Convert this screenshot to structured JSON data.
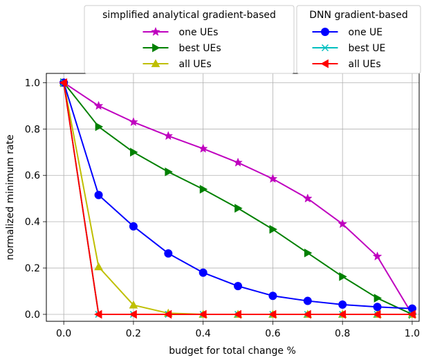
{
  "chart_data": {
    "type": "line",
    "xlabel": "budget for total change %",
    "ylabel": "normalized minimum rate",
    "xlim": [
      -0.05,
      1.02
    ],
    "ylim": [
      -0.03,
      1.04
    ],
    "xticks": [
      0.0,
      0.2,
      0.4,
      0.6,
      0.8,
      1.0
    ],
    "yticks": [
      0.0,
      0.2,
      0.4,
      0.6,
      0.8,
      1.0
    ],
    "xtick_labels": [
      "0.0",
      "0.2",
      "0.4",
      "0.6",
      "0.8",
      "1.0"
    ],
    "ytick_labels": [
      "0.0",
      "0.2",
      "0.4",
      "0.6",
      "0.8",
      "1.0"
    ],
    "grid": true,
    "legend_groups": [
      {
        "title": "simplified analytical gradient-based",
        "placement": "above-left",
        "entries": [
          "one UEs",
          "best UEs",
          "all UEs"
        ]
      },
      {
        "title": "DNN gradient-based",
        "placement": "above-right",
        "entries": [
          "one UE",
          "best UE",
          "all UEs"
        ]
      }
    ],
    "series": [
      {
        "name": "one UEs",
        "group": "simplified analytical gradient-based",
        "color": "#bf00bf",
        "marker": "star",
        "x": [
          0,
          0.1,
          0.2,
          0.3,
          0.4,
          0.5,
          0.6,
          0.7,
          0.8,
          0.9,
          1.0
        ],
        "y": [
          1.0,
          0.9,
          0.83,
          0.77,
          0.715,
          0.655,
          0.585,
          0.5,
          0.39,
          0.25,
          0.0
        ]
      },
      {
        "name": "best UEs",
        "group": "simplified analytical gradient-based",
        "color": "#008000",
        "marker": "triangle-right",
        "x": [
          0,
          0.1,
          0.2,
          0.3,
          0.4,
          0.5,
          0.6,
          0.7,
          0.8,
          0.9,
          1.0
        ],
        "y": [
          1.0,
          0.81,
          0.7,
          0.615,
          0.54,
          0.458,
          0.367,
          0.265,
          0.163,
          0.07,
          0.0
        ]
      },
      {
        "name": "all UEs",
        "group": "simplified analytical gradient-based",
        "color": "#bfbf00",
        "marker": "triangle-up",
        "x": [
          0,
          0.1,
          0.2,
          0.3,
          0.4,
          0.5,
          0.6,
          0.7,
          0.8,
          0.9,
          1.0
        ],
        "y": [
          1.0,
          0.205,
          0.04,
          0.005,
          0.0,
          0.0,
          0.0,
          0.0,
          0.0,
          0.0,
          0.0
        ]
      },
      {
        "name": "one UE",
        "group": "DNN gradient-based",
        "color": "#0000ff",
        "marker": "circle",
        "x": [
          0,
          0.1,
          0.2,
          0.3,
          0.4,
          0.5,
          0.6,
          0.7,
          0.8,
          0.9,
          1.0
        ],
        "y": [
          1.0,
          0.515,
          0.38,
          0.263,
          0.18,
          0.122,
          0.08,
          0.058,
          0.042,
          0.032,
          0.025
        ]
      },
      {
        "name": "best UE",
        "group": "DNN gradient-based",
        "color": "#00bfbf",
        "marker": "x",
        "x": [
          0,
          0.1,
          0.2,
          0.3,
          0.4,
          0.5,
          0.6,
          0.7,
          0.8,
          0.9,
          1.0
        ],
        "y": [
          1.0,
          0.0,
          0.0,
          0.0,
          0.0,
          0.0,
          0.0,
          0.0,
          0.0,
          0.0,
          0.0
        ]
      },
      {
        "name": "all UEs",
        "group": "DNN gradient-based",
        "color": "#ff0000",
        "marker": "triangle-left",
        "x": [
          0,
          0.1,
          0.2,
          0.3,
          0.4,
          0.5,
          0.6,
          0.7,
          0.8,
          0.9,
          1.0
        ],
        "y": [
          1.0,
          0.0,
          0.0,
          0.0,
          0.0,
          0.0,
          0.0,
          0.0,
          0.0,
          0.0,
          0.0
        ]
      }
    ]
  }
}
